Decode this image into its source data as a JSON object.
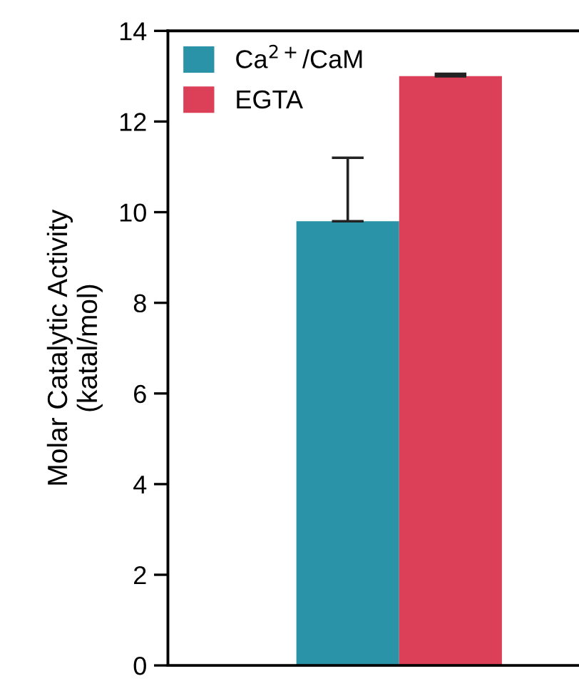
{
  "chart_data": {
    "type": "bar",
    "ylabel": "Molar Catalytic Activity\n(katal/mol)",
    "categories": [
      null
    ],
    "series": [
      {
        "name": "Ca$^{2+}$/CaM",
        "color": "#2a93a8",
        "values": [
          9.8
        ],
        "errors": [
          [
            9.8,
            11.2
          ]
        ]
      },
      {
        "name": "EGTA",
        "color": "#dc4058",
        "values": [
          13.0
        ],
        "errors": [
          [
            13.0,
            13.05
          ]
        ]
      }
    ],
    "ylim": [
      0,
      14
    ],
    "yticks": [
      0,
      2,
      4,
      6,
      8,
      10,
      12,
      14
    ],
    "grid": false,
    "legend": "top left",
    "tick_labels": "y"
  }
}
